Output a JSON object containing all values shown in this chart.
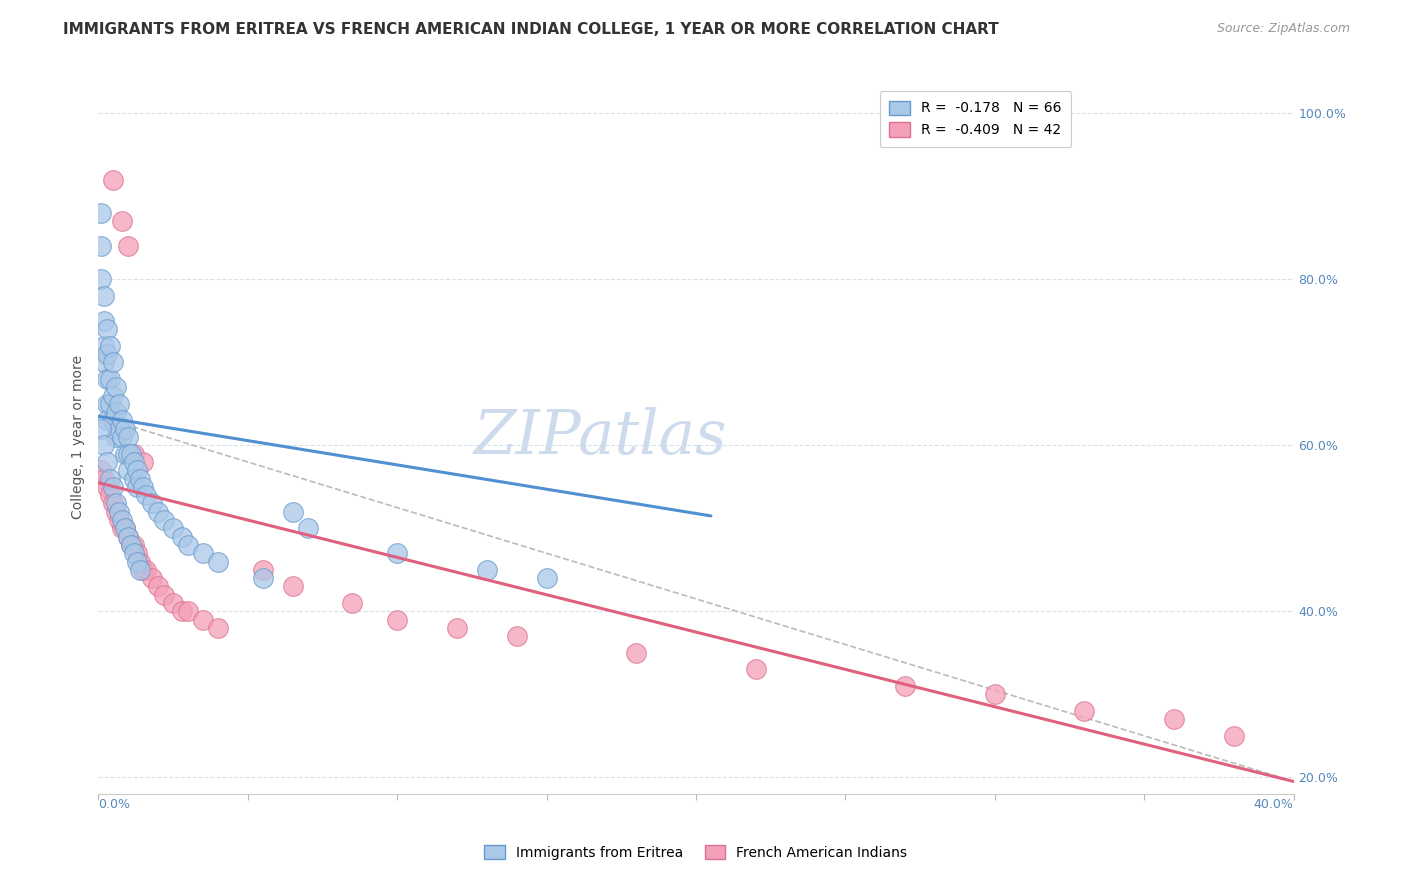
{
  "title": "IMMIGRANTS FROM ERITREA VS FRENCH AMERICAN INDIAN COLLEGE, 1 YEAR OR MORE CORRELATION CHART",
  "source": "Source: ZipAtlas.com",
  "ylabel": "College, 1 year or more",
  "xmin": 0.0,
  "xmax": 0.4,
  "ymin": 0.18,
  "ymax": 1.04,
  "ytick_values": [
    0.2,
    0.4,
    0.6,
    0.8,
    1.0
  ],
  "ytick_labels": [
    "20.0%",
    "40.0%",
    "60.0%",
    "80.0%",
    "100.0%"
  ],
  "legend_entries": [
    {
      "label": "R =  -0.178   N = 66",
      "color": "#a8c8e8",
      "edge": "#7ab0d8"
    },
    {
      "label": "R =  -0.409   N = 42",
      "color": "#f4a0b8",
      "edge": "#e87098"
    }
  ],
  "legend_bottom": [
    {
      "label": "Immigrants from Eritrea",
      "color": "#a8c8e8",
      "edge": "#7ab0d8"
    },
    {
      "label": "French American Indians",
      "color": "#f4a0b8",
      "edge": "#e87098"
    }
  ],
  "blue_scatter_x": [
    0.001,
    0.001,
    0.001,
    0.002,
    0.002,
    0.002,
    0.002,
    0.003,
    0.003,
    0.003,
    0.003,
    0.003,
    0.004,
    0.004,
    0.004,
    0.005,
    0.005,
    0.005,
    0.006,
    0.006,
    0.006,
    0.007,
    0.007,
    0.008,
    0.008,
    0.009,
    0.009,
    0.01,
    0.01,
    0.01,
    0.011,
    0.012,
    0.012,
    0.013,
    0.013,
    0.014,
    0.015,
    0.016,
    0.018,
    0.02,
    0.022,
    0.025,
    0.028,
    0.03,
    0.035,
    0.04,
    0.055,
    0.065,
    0.07,
    0.1,
    0.13,
    0.15,
    0.001,
    0.002,
    0.003,
    0.004,
    0.005,
    0.006,
    0.007,
    0.008,
    0.009,
    0.01,
    0.011,
    0.012,
    0.013,
    0.014
  ],
  "blue_scatter_y": [
    0.88,
    0.84,
    0.8,
    0.78,
    0.75,
    0.72,
    0.7,
    0.74,
    0.71,
    0.68,
    0.65,
    0.63,
    0.72,
    0.68,
    0.65,
    0.7,
    0.66,
    0.63,
    0.67,
    0.64,
    0.61,
    0.65,
    0.62,
    0.63,
    0.61,
    0.62,
    0.59,
    0.61,
    0.59,
    0.57,
    0.59,
    0.58,
    0.56,
    0.57,
    0.55,
    0.56,
    0.55,
    0.54,
    0.53,
    0.52,
    0.51,
    0.5,
    0.49,
    0.48,
    0.47,
    0.46,
    0.44,
    0.52,
    0.5,
    0.47,
    0.45,
    0.44,
    0.62,
    0.6,
    0.58,
    0.56,
    0.55,
    0.53,
    0.52,
    0.51,
    0.5,
    0.49,
    0.48,
    0.47,
    0.46,
    0.45
  ],
  "pink_scatter_x": [
    0.001,
    0.002,
    0.003,
    0.004,
    0.005,
    0.006,
    0.007,
    0.008,
    0.009,
    0.01,
    0.011,
    0.012,
    0.013,
    0.014,
    0.015,
    0.016,
    0.018,
    0.02,
    0.022,
    0.025,
    0.028,
    0.03,
    0.035,
    0.04,
    0.055,
    0.065,
    0.085,
    0.1,
    0.12,
    0.14,
    0.18,
    0.22,
    0.27,
    0.3,
    0.33,
    0.36,
    0.38,
    0.005,
    0.008,
    0.01,
    0.012,
    0.015
  ],
  "pink_scatter_y": [
    0.57,
    0.56,
    0.55,
    0.54,
    0.53,
    0.52,
    0.51,
    0.5,
    0.5,
    0.49,
    0.48,
    0.48,
    0.47,
    0.46,
    0.45,
    0.45,
    0.44,
    0.43,
    0.42,
    0.41,
    0.4,
    0.4,
    0.39,
    0.38,
    0.45,
    0.43,
    0.41,
    0.39,
    0.38,
    0.37,
    0.35,
    0.33,
    0.31,
    0.3,
    0.28,
    0.27,
    0.25,
    0.92,
    0.87,
    0.84,
    0.59,
    0.58
  ],
  "blue_line_x": [
    0.0,
    0.205
  ],
  "blue_line_y": [
    0.635,
    0.515
  ],
  "pink_line_x": [
    0.0,
    0.4
  ],
  "pink_line_y": [
    0.555,
    0.195
  ],
  "dash_line_x": [
    0.0,
    0.4
  ],
  "dash_line_y": [
    0.635,
    0.195
  ],
  "background_color": "#ffffff",
  "grid_color": "#d8e0ec",
  "blue_line_color": "#5090d0",
  "pink_line_color": "#e06080",
  "blue_scatter_color": "#aac8e8",
  "blue_edge_color": "#6699cc",
  "pink_scatter_color": "#f4a0b8",
  "pink_edge_color": "#dd7090",
  "dash_color": "#bbbbbb",
  "title_fontsize": 11,
  "source_fontsize": 9,
  "ylabel_fontsize": 10,
  "tick_fontsize": 9,
  "legend_fontsize": 10,
  "watermark_text": "ZIPatlas",
  "watermark_color": "#c8d8ec"
}
